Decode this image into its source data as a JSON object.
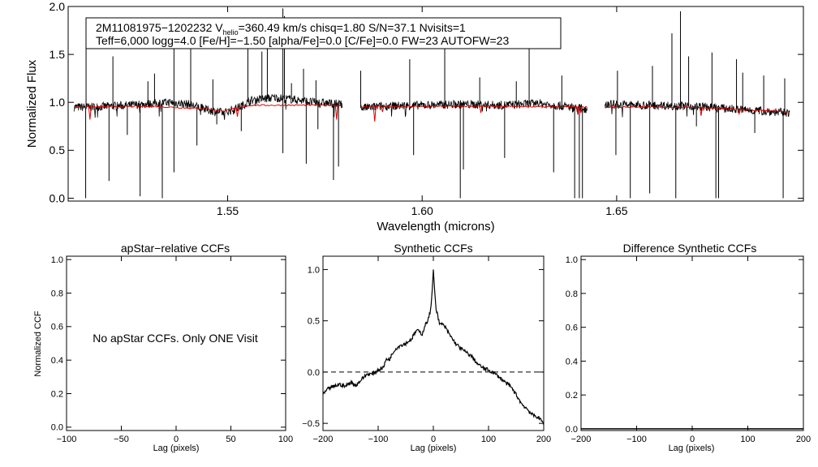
{
  "colors": {
    "model": "#dd0000",
    "spectrum": "#000000",
    "axes": "#000000",
    "background": "#ffffff"
  },
  "spectrum_panel": {
    "info_line1": "2M11081975−1202232  V",
    "info_sub": "helio",
    "info_line1b": "=360.49 km/s  chisq=1.80  S/N=37.1  Nvisits=1",
    "info_line2": "Teff=6,000 logg=4.0 [Fe/H]=−1.50 [alpha/Fe]=0.0 [C/Fe]=0.0 FW=23 AUTOFW=23"
  },
  "panel_titles": {
    "apstar": "apStar−relative CCFs",
    "synthetic": "Synthetic CCFs",
    "difference": "Difference Synthetic CCFs"
  },
  "no_ccf_message": "No apStar CCFs.  Only ONE Visit",
  "chart_data": [
    {
      "type": "line",
      "id": "spectrum",
      "xlabel": "Wavelength (microns)",
      "ylabel": "Normalized Flux",
      "xlim": [
        1.509,
        1.698
      ],
      "ylim": [
        -0.03,
        2.0
      ],
      "xticks": [
        1.55,
        1.6,
        1.65
      ],
      "xtick_labels": [
        "1.55",
        "1.60",
        "1.65"
      ],
      "yticks": [
        0.0,
        0.5,
        1.0,
        1.5,
        2.0
      ],
      "ytick_labels": [
        "0.0",
        "0.5",
        "1.0",
        "1.5",
        "2.0"
      ],
      "chips": [
        [
          1.5105,
          1.5795
        ],
        [
          1.5842,
          1.6425
        ],
        [
          1.647,
          1.6945
        ]
      ],
      "series": [
        {
          "role": "observed",
          "color": "#000000",
          "continuum": [
            [
              1.5105,
              0.95
            ],
            [
              1.515,
              0.95
            ],
            [
              1.525,
              0.97
            ],
            [
              1.535,
              1.0
            ],
            [
              1.54,
              0.98
            ],
            [
              1.545,
              0.92
            ],
            [
              1.549,
              0.89
            ],
            [
              1.553,
              0.95
            ],
            [
              1.556,
              1.02
            ],
            [
              1.562,
              1.05
            ],
            [
              1.567,
              1.03
            ],
            [
              1.572,
              1.0
            ],
            [
              1.5795,
              0.98
            ],
            [
              1.5842,
              0.94
            ],
            [
              1.59,
              0.96
            ],
            [
              1.6,
              0.97
            ],
            [
              1.61,
              0.98
            ],
            [
              1.62,
              0.97
            ],
            [
              1.63,
              0.99
            ],
            [
              1.6425,
              0.93
            ],
            [
              1.647,
              0.98
            ],
            [
              1.66,
              0.97
            ],
            [
              1.67,
              0.96
            ],
            [
              1.68,
              0.93
            ],
            [
              1.6945,
              0.89
            ]
          ],
          "spikes_up": [
            [
              1.5136,
              1.62
            ],
            [
              1.5205,
              1.48
            ],
            [
              1.5295,
              1.22
            ],
            [
              1.5312,
              1.3
            ],
            [
              1.5362,
              1.7
            ],
            [
              1.5405,
              1.72
            ],
            [
              1.5462,
              1.24
            ],
            [
              1.5552,
              1.75
            ],
            [
              1.5588,
              1.53
            ],
            [
              1.5602,
              1.65
            ],
            [
              1.5642,
              1.98
            ],
            [
              1.5646,
              1.9
            ],
            [
              1.5664,
              1.2
            ],
            [
              1.5695,
              1.35
            ],
            [
              1.5727,
              1.23
            ],
            [
              1.5842,
              1.33
            ],
            [
              1.5968,
              1.45
            ],
            [
              1.6058,
              1.62
            ],
            [
              1.6148,
              1.26
            ],
            [
              1.6242,
              1.22
            ],
            [
              1.6275,
              1.63
            ],
            [
              1.6359,
              1.28
            ],
            [
              1.6502,
              1.33
            ],
            [
              1.6592,
              1.38
            ],
            [
              1.6642,
              1.72
            ],
            [
              1.6664,
              1.95
            ],
            [
              1.6685,
              1.48
            ],
            [
              1.6745,
              1.52
            ],
            [
              1.6808,
              1.45
            ],
            [
              1.6824,
              1.31
            ],
            [
              1.6878,
              1.28
            ],
            [
              1.6932,
              1.25
            ]
          ],
          "spikes_down": [
            [
              1.5135,
              0.0
            ],
            [
              1.5195,
              0.18
            ],
            [
              1.5242,
              0.66
            ],
            [
              1.5275,
              0.02
            ],
            [
              1.5332,
              0.0
            ],
            [
              1.5362,
              0.27
            ],
            [
              1.5421,
              0.55
            ],
            [
              1.5472,
              0.77
            ],
            [
              1.5535,
              0.7
            ],
            [
              1.5642,
              0.47
            ],
            [
              1.5702,
              0.36
            ],
            [
              1.5732,
              0.72
            ],
            [
              1.5772,
              0.19
            ],
            [
              1.5785,
              0.33
            ],
            [
              1.5978,
              0.45
            ],
            [
              1.6098,
              0.0
            ],
            [
              1.6106,
              0.3
            ],
            [
              1.6212,
              0.42
            ],
            [
              1.6338,
              0.27
            ],
            [
              1.6392,
              0.0
            ],
            [
              1.6404,
              0.0
            ],
            [
              1.6412,
              0.0
            ],
            [
              1.6498,
              0.45
            ],
            [
              1.6535,
              0.0
            ],
            [
              1.6585,
              0.05
            ],
            [
              1.6652,
              0.0
            ],
            [
              1.6705,
              0.75
            ],
            [
              1.6755,
              0.0
            ],
            [
              1.6762,
              0.0
            ],
            [
              1.6855,
              0.68
            ],
            [
              1.6928,
              0.0
            ]
          ]
        },
        {
          "role": "model",
          "color": "#dd0000",
          "continuum": [
            [
              1.5105,
              0.95
            ],
            [
              1.53,
              0.96
            ],
            [
              1.545,
              0.93
            ],
            [
              1.549,
              0.91
            ],
            [
              1.556,
              0.97
            ],
            [
              1.5795,
              0.97
            ],
            [
              1.5842,
              0.95
            ],
            [
              1.6,
              0.96
            ],
            [
              1.62,
              0.96
            ],
            [
              1.6425,
              0.95
            ],
            [
              1.647,
              0.95
            ],
            [
              1.67,
              0.95
            ],
            [
              1.6945,
              0.9
            ]
          ],
          "dips": [
            [
              1.5146,
              0.82
            ],
            [
              1.5525,
              0.85
            ],
            [
              1.578,
              0.82
            ],
            [
              1.5878,
              0.8
            ],
            [
              1.5898,
              0.9
            ],
            [
              1.6151,
              0.89
            ],
            [
              1.64,
              0.87
            ],
            [
              1.6408,
              0.89
            ],
            [
              1.6717,
              0.86
            ],
            [
              1.6815,
              0.88
            ]
          ]
        }
      ]
    },
    {
      "type": "line",
      "id": "apstar_ccf",
      "title": "apStar−relative CCFs",
      "xlabel": "Lag (pixels)",
      "ylabel": "Normalized CCF",
      "xlim": [
        -100,
        100
      ],
      "ylim": [
        -0.02,
        1.02
      ],
      "xticks": [
        -100,
        -50,
        0,
        50,
        100
      ],
      "xtick_labels": [
        "−100",
        "−50",
        "0",
        "50",
        "100"
      ],
      "yticks": [
        0.0,
        0.2,
        0.4,
        0.6,
        0.8,
        1.0
      ],
      "ytick_labels": [
        "0.0",
        "0.2",
        "0.4",
        "0.6",
        "0.8",
        "1.0"
      ],
      "series": []
    },
    {
      "type": "line",
      "id": "synthetic_ccf",
      "title": "Synthetic CCFs",
      "xlabel": "Lag (pixels)",
      "xlim": [
        -200,
        200
      ],
      "ylim": [
        -0.57,
        1.13
      ],
      "xticks": [
        -200,
        -100,
        0,
        100,
        200
      ],
      "xtick_labels": [
        "−200",
        "−100",
        "0",
        "100",
        "200"
      ],
      "yticks": [
        -0.5,
        0.0,
        0.5,
        1.0
      ],
      "ytick_labels": [
        "−0.5",
        "0.0",
        "0.5",
        "1.0"
      ],
      "reference_line": 0.0,
      "series": [
        {
          "name": "",
          "x": [
            -200,
            -190,
            -180,
            -170,
            -160,
            -150,
            -140,
            -130,
            -120,
            -110,
            -100,
            -90,
            -85,
            -80,
            -70,
            -60,
            -50,
            -40,
            -30,
            -20,
            -15,
            -10,
            -5,
            -2,
            0,
            2,
            5,
            8,
            12,
            15,
            20,
            30,
            40,
            50,
            60,
            70,
            80,
            90,
            100,
            110,
            120,
            130,
            140,
            150,
            160,
            170,
            180,
            190,
            200
          ],
          "y": [
            -0.22,
            -0.16,
            -0.14,
            -0.12,
            -0.14,
            -0.1,
            -0.13,
            -0.07,
            -0.02,
            -0.02,
            0.02,
            0.05,
            0.13,
            0.12,
            0.22,
            0.26,
            0.28,
            0.32,
            0.41,
            0.37,
            0.46,
            0.5,
            0.6,
            0.8,
            1.0,
            0.82,
            0.62,
            0.55,
            0.46,
            0.47,
            0.45,
            0.36,
            0.28,
            0.23,
            0.19,
            0.15,
            0.08,
            0.04,
            0.02,
            -0.01,
            -0.05,
            -0.1,
            -0.14,
            -0.22,
            -0.31,
            -0.36,
            -0.42,
            -0.44,
            -0.5
          ]
        }
      ]
    },
    {
      "type": "line",
      "id": "difference_ccf",
      "title": "Difference Synthetic CCFs",
      "xlabel": "Lag (pixels)",
      "xlim": [
        -200,
        200
      ],
      "ylim": [
        -0.01,
        1.02
      ],
      "xticks": [
        -200,
        -100,
        0,
        100,
        200
      ],
      "xtick_labels": [
        "−200",
        "−100",
        "0",
        "100",
        "200"
      ],
      "yticks": [
        0.0,
        0.2,
        0.4,
        0.6,
        0.8,
        1.0
      ],
      "ytick_labels": [
        "0.0",
        "0.2",
        "0.4",
        "0.6",
        "0.8",
        "1.0"
      ],
      "series": [
        {
          "name": "",
          "x": [
            -200,
            200
          ],
          "y": [
            0.0,
            0.0
          ]
        }
      ]
    }
  ]
}
